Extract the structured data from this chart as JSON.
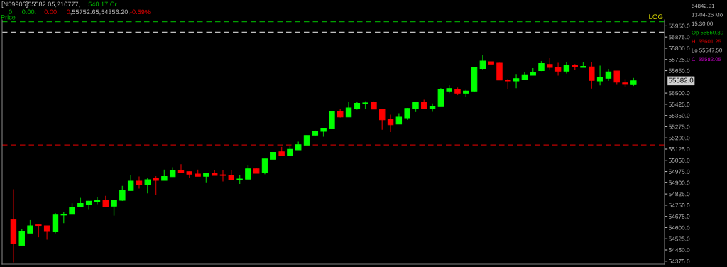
{
  "chart_data": {
    "type": "candlestick",
    "categories": [
      null,
      null,
      null,
      null,
      null,
      null,
      null,
      null,
      null,
      null,
      null,
      null,
      null,
      null,
      null,
      null,
      null,
      null,
      null,
      null,
      null,
      null,
      null,
      null,
      null,
      null,
      null,
      null,
      null,
      null,
      null,
      null,
      null,
      null,
      null,
      null,
      null,
      null,
      null,
      null,
      null,
      null,
      null,
      null,
      null,
      null,
      null,
      null,
      null,
      null,
      null,
      null,
      null,
      null,
      null,
      null,
      null,
      null,
      null,
      null,
      null,
      null,
      null,
      null,
      null,
      null,
      null,
      null,
      null,
      null,
      null,
      null,
      null,
      null,
      null
    ],
    "ohlc": [
      [
        54653,
        54857,
        54367,
        54493
      ],
      [
        54480,
        54590,
        54477,
        54574
      ],
      [
        54563,
        54650,
        54563,
        54611
      ],
      [
        54618,
        54626,
        54535,
        54614
      ],
      [
        54611,
        54612,
        54519,
        54574
      ],
      [
        54571,
        54697,
        54562,
        54684
      ],
      [
        54684,
        54703,
        54629,
        54689
      ],
      [
        54689,
        54763,
        54689,
        54736
      ],
      [
        54738,
        54799,
        54738,
        54761
      ],
      [
        54757,
        54779,
        54719,
        54776
      ],
      [
        54773,
        54802,
        54757,
        54785
      ],
      [
        54785,
        54813,
        54743,
        54743
      ],
      [
        54744,
        54785,
        54680,
        54785
      ],
      [
        54783,
        54879,
        54779,
        54850
      ],
      [
        54848,
        54952,
        54848,
        54911
      ],
      [
        54911,
        54942,
        54861,
        54890
      ],
      [
        54886,
        54930,
        54829,
        54920
      ],
      [
        54927,
        54944,
        54818,
        54916
      ],
      [
        54916,
        54988,
        54916,
        54942
      ],
      [
        54941,
        55004,
        54941,
        54983
      ],
      [
        54985,
        55024,
        54963,
        54971
      ],
      [
        54974,
        54975,
        54931,
        54958
      ],
      [
        54958,
        54988,
        54944,
        54944
      ],
      [
        54944,
        54967,
        54898,
        54963
      ],
      [
        54964,
        54983,
        54949,
        54949
      ],
      [
        54953,
        54986,
        54909,
        54949
      ],
      [
        54949,
        54983,
        54920,
        54920
      ],
      [
        54920,
        54952,
        54892,
        54925
      ],
      [
        54925,
        55019,
        54925,
        54993
      ],
      [
        54993,
        54996,
        54964,
        54964
      ],
      [
        54967,
        55060,
        54958,
        55059
      ],
      [
        55057,
        55104,
        55057,
        55103
      ],
      [
        55107,
        55140,
        55082,
        55082
      ],
      [
        55085,
        55143,
        55085,
        55123
      ],
      [
        55121,
        55175,
        55121,
        55154
      ],
      [
        55153,
        55217,
        55153,
        55216
      ],
      [
        55219,
        55250,
        55213,
        55241
      ],
      [
        55244,
        55266,
        55208,
        55265
      ],
      [
        55263,
        55381,
        55263,
        55379
      ],
      [
        55379,
        55395,
        55337,
        55340
      ],
      [
        55340,
        55442,
        55340,
        55400
      ],
      [
        55398,
        55439,
        55389,
        55431
      ],
      [
        55431,
        55445,
        55395,
        55434
      ],
      [
        55441,
        55444,
        55392,
        55392
      ],
      [
        55389,
        55392,
        55254,
        55321
      ],
      [
        55323,
        55356,
        55239,
        55288
      ],
      [
        55293,
        55365,
        55293,
        55338
      ],
      [
        55334,
        55400,
        55321,
        55397
      ],
      [
        55395,
        55439,
        55373,
        55436
      ],
      [
        55441,
        55455,
        55392,
        55398
      ],
      [
        55398,
        55430,
        55375,
        55412
      ],
      [
        55414,
        55533,
        55414,
        55521
      ],
      [
        55514,
        55552,
        55499,
        55530
      ],
      [
        55524,
        55537,
        55486,
        55499
      ],
      [
        55499,
        55521,
        55474,
        55513
      ],
      [
        55514,
        55670,
        55508,
        55669
      ],
      [
        55665,
        55757,
        55659,
        55714
      ],
      [
        55709,
        55709,
        55694,
        55694
      ],
      [
        55700,
        55702,
        55588,
        55588
      ],
      [
        55588,
        55596,
        55526,
        55582
      ],
      [
        55581,
        55628,
        55533,
        55596
      ],
      [
        55593,
        55640,
        55590,
        55623
      ],
      [
        55620,
        55667,
        55620,
        55639
      ],
      [
        55650,
        55714,
        55647,
        55697
      ],
      [
        55691,
        55738,
        55659,
        55672
      ],
      [
        55672,
        55703,
        55617,
        55647
      ],
      [
        55647,
        55709,
        55631,
        55684
      ],
      [
        55687,
        55694,
        55654,
        55676
      ],
      [
        55672,
        55709,
        55672,
        55678
      ],
      [
        55675,
        55706,
        55530,
        55585
      ],
      [
        55581,
        55684,
        55552,
        55603
      ],
      [
        55599,
        55662,
        55581,
        55642
      ],
      [
        55647,
        55647,
        55560,
        55573
      ],
      [
        55568,
        55593,
        55544,
        55563
      ],
      [
        55560.8,
        55601.25,
        55547.5,
        55582.05
      ]
    ],
    "ylim": [
      54355,
      55990
    ],
    "yticks": [
      {
        "value": 54375,
        "label": "54375.0"
      },
      {
        "value": 54450,
        "label": "54450.0"
      },
      {
        "value": 54525,
        "label": "54525.0"
      },
      {
        "value": 54600,
        "label": "54600.0"
      },
      {
        "value": 54675,
        "label": "54675.0"
      },
      {
        "value": 54750,
        "label": "54750.0"
      },
      {
        "value": 54825,
        "label": "54825.0"
      },
      {
        "value": 54900,
        "label": "54900.0"
      },
      {
        "value": 54975,
        "label": "54975.0"
      },
      {
        "value": 55050,
        "label": "55050.0"
      },
      {
        "value": 55125,
        "label": "55125.0"
      },
      {
        "value": 55200,
        "label": "55200.0"
      },
      {
        "value": 55275,
        "label": "55275.0"
      },
      {
        "value": 55350,
        "label": "55350.0"
      },
      {
        "value": 55425,
        "label": "55425.0"
      },
      {
        "value": 55500,
        "label": "55500.0"
      },
      {
        "value": 55650,
        "label": "55650.0"
      },
      {
        "value": 55725,
        "label": "55725.0"
      },
      {
        "value": 55800,
        "label": "55800.0"
      },
      {
        "value": 55875,
        "label": "55875.0"
      },
      {
        "value": 55950,
        "label": "55950.0"
      }
    ],
    "tick_labels": "y",
    "grid": false,
    "ref_lines": [
      {
        "axis": "y",
        "value": 55978,
        "color": "#00a000",
        "line_style": "dashed"
      },
      {
        "axis": "y",
        "value": 55908,
        "color": "#c0c0c0",
        "line_style": "dashed"
      },
      {
        "axis": "y",
        "value": 55153,
        "color": "#c00000",
        "line_style": "dashed"
      }
    ],
    "annotations": [
      "[N59906]55582.05,210777,",
      "540.17 Cr",
      "0,",
      "0.00:",
      "0.00,",
      "0",
      ",55752.65,54356.20,",
      "-0.59%",
      "Price",
      "LOG",
      "55582.0",
      "54842.91",
      "13-04-26 Mo",
      "15:30:00",
      "Op 55560.80",
      "Hi 55601.25",
      "Lo 55547.50",
      "Cl 55582.05"
    ]
  }
}
